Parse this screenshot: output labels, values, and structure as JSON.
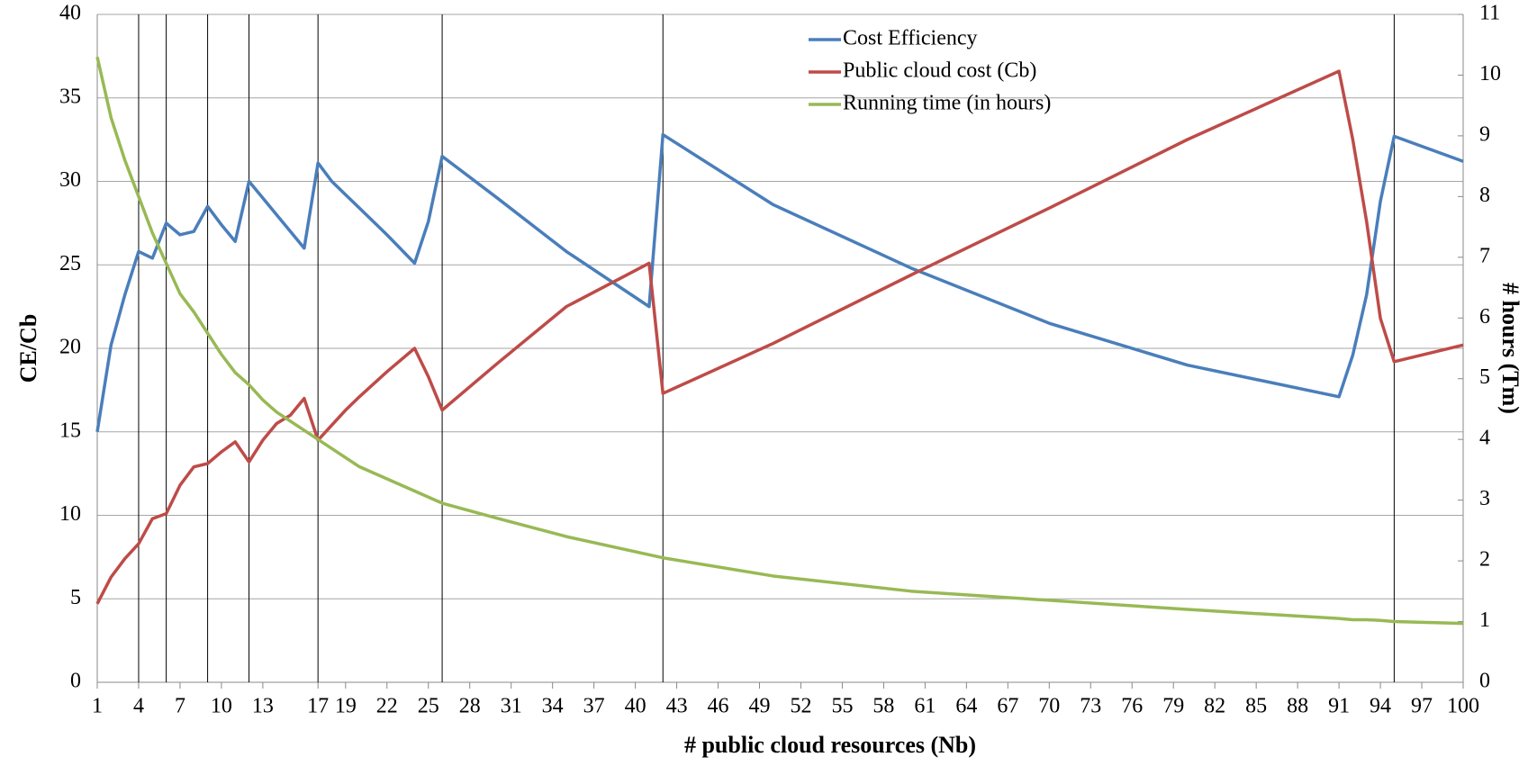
{
  "chart_data": {
    "type": "line",
    "xlabel": "# public cloud resources (Nb)",
    "ylabel": "CE/Cb",
    "y2label": "# hours (Tm)",
    "x": [
      1,
      2,
      3,
      4,
      5,
      6,
      7,
      8,
      9,
      10,
      11,
      12,
      13,
      14,
      15,
      16,
      17,
      18,
      19,
      20,
      22,
      24,
      25,
      26,
      30,
      35,
      41,
      42,
      50,
      60,
      70,
      80,
      91,
      92,
      93,
      94,
      95,
      100
    ],
    "xlim": [
      1,
      100
    ],
    "xticks": [
      1,
      4,
      7,
      10,
      13,
      17,
      19,
      22,
      25,
      28,
      31,
      34,
      37,
      40,
      43,
      46,
      49,
      52,
      55,
      58,
      61,
      64,
      67,
      70,
      73,
      76,
      79,
      82,
      85,
      88,
      91,
      94,
      97,
      100
    ],
    "ylim": [
      0,
      40
    ],
    "yticks": [
      0,
      5,
      10,
      15,
      20,
      25,
      30,
      35,
      40
    ],
    "y2lim": [
      0,
      11
    ],
    "y2ticks": [
      0,
      1,
      2,
      3,
      4,
      5,
      6,
      7,
      8,
      9,
      10,
      11
    ],
    "grid": true,
    "vlines": [
      4,
      6,
      9,
      12,
      17,
      26,
      42,
      95
    ],
    "legend": "top-center",
    "series": [
      {
        "name": "Cost Efficiency",
        "color": "#4a7ebb",
        "values": [
          15,
          20.2,
          23.2,
          25.8,
          25.4,
          27.5,
          26.8,
          27,
          28.5,
          27.4,
          26.4,
          30,
          29,
          28,
          27,
          26,
          31.1,
          30,
          29.2,
          28.4,
          26.8,
          25.1,
          27.6,
          31.5,
          29,
          25.8,
          22.5,
          32.8,
          28.6,
          24.8,
          21.5,
          19,
          17.1,
          19.6,
          23.2,
          28.8,
          32.7,
          31.2
        ]
      },
      {
        "name": "Public cloud cost (Cb)",
        "color": "#be4b48",
        "values": [
          4.7,
          6.3,
          7.4,
          8.3,
          9.8,
          10.1,
          11.8,
          12.9,
          13.1,
          13.8,
          14.4,
          13.2,
          14.5,
          15.5,
          16,
          17,
          14.5,
          15.4,
          16.3,
          17.1,
          18.6,
          20,
          18.3,
          16.3,
          19.1,
          22.5,
          25.1,
          17.3,
          20.3,
          24.4,
          28.4,
          32.5,
          36.6,
          32.5,
          27.6,
          21.8,
          19.2,
          20.2
        ]
      },
      {
        "name": "Running time (in hours)",
        "color": "#98b954",
        "axis": "y2",
        "values": [
          10.3,
          9.3,
          8.6,
          8.0,
          7.4,
          6.9,
          6.4,
          6.1,
          5.75,
          5.4,
          5.1,
          4.9,
          4.65,
          4.45,
          4.3,
          4.15,
          4.0,
          3.85,
          3.7,
          3.55,
          3.35,
          3.15,
          3.05,
          2.95,
          2.7,
          2.4,
          2.1,
          2.05,
          1.75,
          1.5,
          1.35,
          1.2,
          1.05,
          1.03,
          1.03,
          1.02,
          1.0,
          0.97
        ]
      }
    ]
  }
}
